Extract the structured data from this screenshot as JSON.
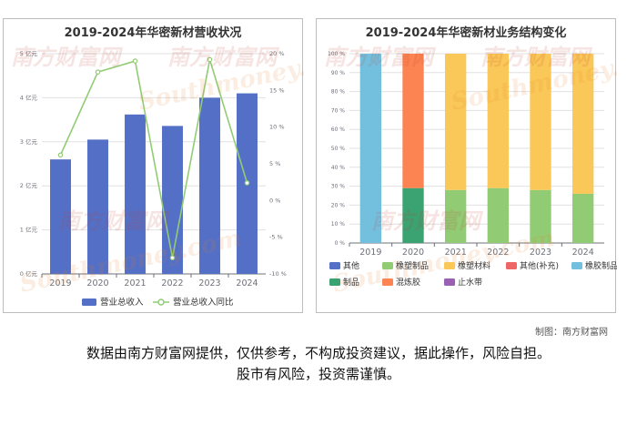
{
  "watermark": {
    "cn": "南方财富网",
    "en": "Southmoney.com"
  },
  "credit": "制图：南方财富网",
  "disclaimer": [
    "数据由南方财富网提供，仅供参考，不构成投资建议，据此操作，风险自担。",
    "股市有风险，投资需谨慎。"
  ],
  "colors": {
    "bar": "#5470c6",
    "line": "#91cc75",
    "grid": "#e0e0e0",
    "axis": "#6e7079"
  },
  "chart_data": [
    {
      "type": "bar",
      "title": "2019-2024年华密新材营收状况",
      "categories": [
        "2019",
        "2020",
        "2021",
        "2022",
        "2023",
        "2024"
      ],
      "y_left": {
        "ticks": [
          "0 亿元",
          "1 亿元",
          "2 亿元",
          "3 亿元",
          "4 亿元",
          "5 亿元"
        ],
        "ylim": [
          0,
          5
        ]
      },
      "y_right": {
        "ticks": [
          "-10 %",
          "-5 %",
          "0 %",
          "5 %",
          "10 %",
          "15 %",
          "20 %"
        ],
        "ylim": [
          -10,
          20
        ]
      },
      "series": [
        {
          "name": "营业总收入",
          "type": "bar",
          "color": "#5470c6",
          "values": [
            2.6,
            3.05,
            3.62,
            3.36,
            4.0,
            4.1
          ]
        },
        {
          "name": "营业总收入同比",
          "type": "line",
          "color": "#91cc75",
          "values": [
            6.2,
            17.5,
            19.0,
            -7.8,
            19.2,
            2.4
          ]
        }
      ],
      "grid": true,
      "legend": "bottom"
    },
    {
      "type": "bar",
      "stacked": true,
      "title": "2019-2024年华密新材业务结构变化",
      "categories": [
        "2019",
        "2020",
        "2021",
        "2022",
        "2023",
        "2024"
      ],
      "y_ticks": [
        "0 %",
        "10 %",
        "20 %",
        "30 %",
        "40 %",
        "50 %",
        "60 %",
        "70 %",
        "80 %",
        "90 %",
        "100 %"
      ],
      "ylim": [
        0,
        100
      ],
      "series": [
        {
          "name": "其他",
          "color": "#5470c6",
          "values": [
            0,
            0,
            0,
            0,
            0,
            0
          ]
        },
        {
          "name": "橡塑制品",
          "color": "#91cc75",
          "values": [
            0,
            0,
            28,
            29,
            28,
            26
          ]
        },
        {
          "name": "橡塑材料",
          "color": "#fac858",
          "values": [
            0,
            0,
            72,
            71,
            72,
            74
          ]
        },
        {
          "name": "其他(补充)",
          "color": "#ee6666",
          "values": [
            0,
            0,
            0,
            0,
            0,
            0
          ]
        },
        {
          "name": "橡胶制品业",
          "color": "#73c0de",
          "values": [
            100,
            0,
            0,
            0,
            0,
            0
          ]
        },
        {
          "name": "制品",
          "color": "#3ba272",
          "values": [
            0,
            29,
            0,
            0,
            0,
            0
          ]
        },
        {
          "name": "混炼胶",
          "color": "#fc8452",
          "values": [
            0,
            71,
            0,
            0,
            0,
            0
          ]
        },
        {
          "name": "止水带",
          "color": "#9a60b4",
          "values": [
            0,
            0,
            0,
            0,
            0,
            0
          ]
        }
      ],
      "grid": true,
      "legend": "bottom"
    }
  ]
}
